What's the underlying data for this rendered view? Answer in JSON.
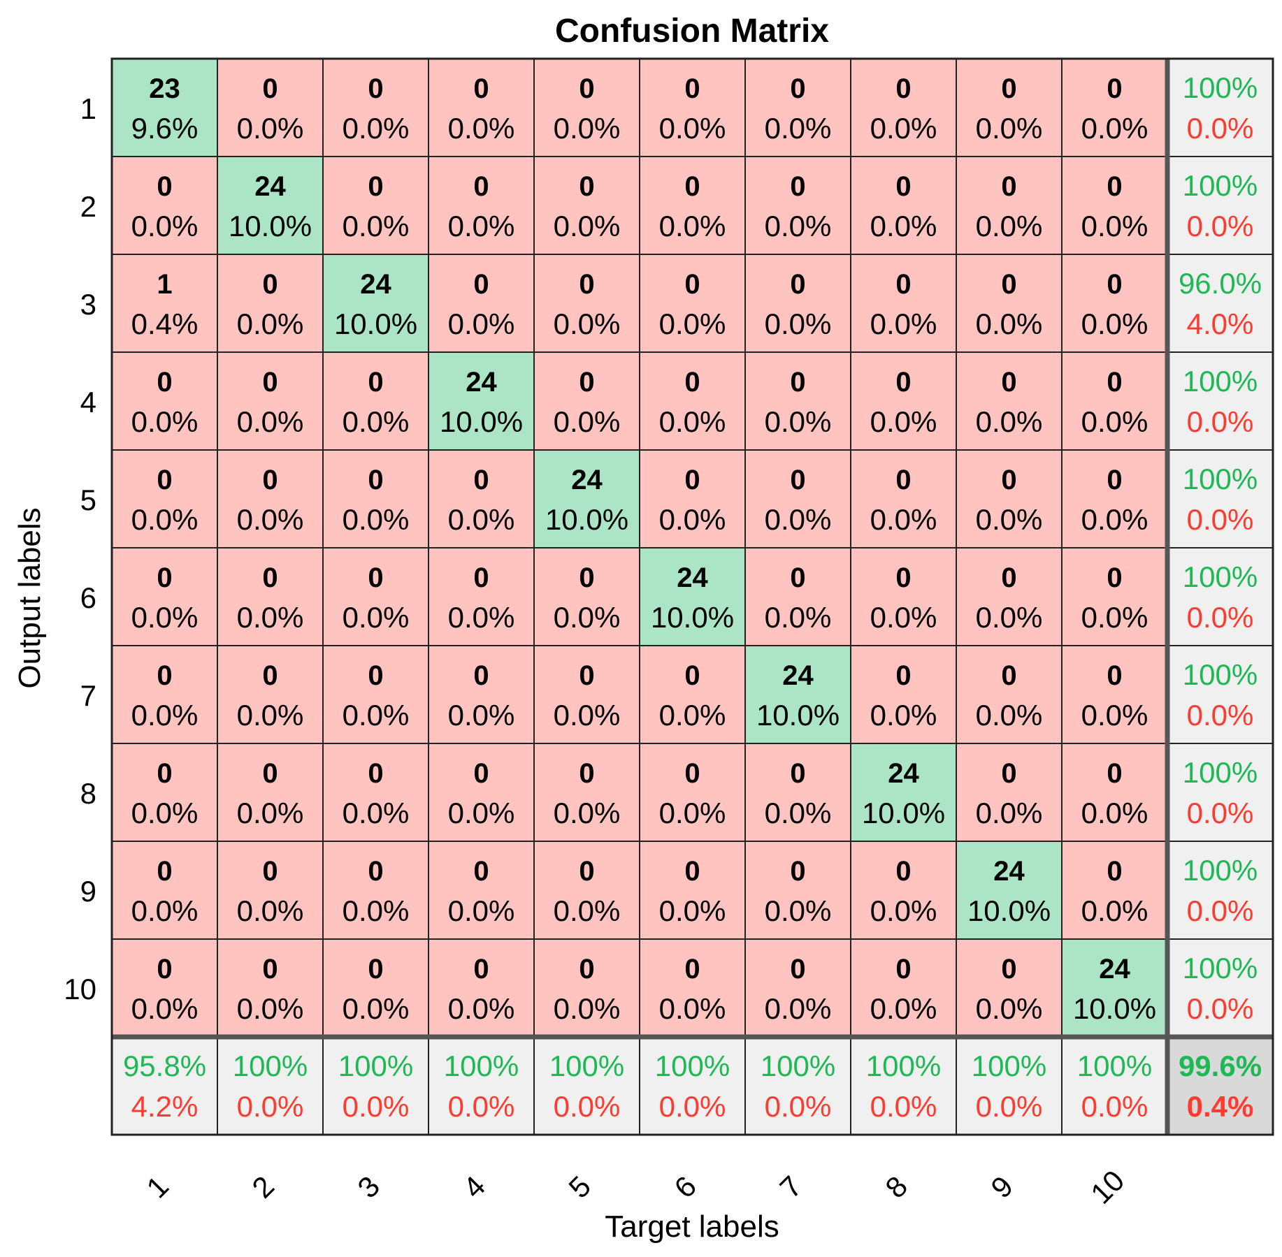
{
  "chart_data": {
    "type": "heatmap",
    "title": "Confusion Matrix",
    "xlabel": "Target labels",
    "ylabel": "Output labels",
    "classes": [
      "1",
      "2",
      "3",
      "4",
      "5",
      "6",
      "7",
      "8",
      "9",
      "10"
    ],
    "counts": [
      [
        23,
        0,
        0,
        0,
        0,
        0,
        0,
        0,
        0,
        0
      ],
      [
        0,
        24,
        0,
        0,
        0,
        0,
        0,
        0,
        0,
        0
      ],
      [
        1,
        0,
        24,
        0,
        0,
        0,
        0,
        0,
        0,
        0
      ],
      [
        0,
        0,
        0,
        24,
        0,
        0,
        0,
        0,
        0,
        0
      ],
      [
        0,
        0,
        0,
        0,
        24,
        0,
        0,
        0,
        0,
        0
      ],
      [
        0,
        0,
        0,
        0,
        0,
        24,
        0,
        0,
        0,
        0
      ],
      [
        0,
        0,
        0,
        0,
        0,
        0,
        24,
        0,
        0,
        0
      ],
      [
        0,
        0,
        0,
        0,
        0,
        0,
        0,
        24,
        0,
        0
      ],
      [
        0,
        0,
        0,
        0,
        0,
        0,
        0,
        0,
        24,
        0
      ],
      [
        0,
        0,
        0,
        0,
        0,
        0,
        0,
        0,
        0,
        24
      ]
    ],
    "percents": [
      [
        "9.6%",
        "0.0%",
        "0.0%",
        "0.0%",
        "0.0%",
        "0.0%",
        "0.0%",
        "0.0%",
        "0.0%",
        "0.0%"
      ],
      [
        "0.0%",
        "10.0%",
        "0.0%",
        "0.0%",
        "0.0%",
        "0.0%",
        "0.0%",
        "0.0%",
        "0.0%",
        "0.0%"
      ],
      [
        "0.4%",
        "0.0%",
        "10.0%",
        "0.0%",
        "0.0%",
        "0.0%",
        "0.0%",
        "0.0%",
        "0.0%",
        "0.0%"
      ],
      [
        "0.0%",
        "0.0%",
        "0.0%",
        "10.0%",
        "0.0%",
        "0.0%",
        "0.0%",
        "0.0%",
        "0.0%",
        "0.0%"
      ],
      [
        "0.0%",
        "0.0%",
        "0.0%",
        "0.0%",
        "10.0%",
        "0.0%",
        "0.0%",
        "0.0%",
        "0.0%",
        "0.0%"
      ],
      [
        "0.0%",
        "0.0%",
        "0.0%",
        "0.0%",
        "0.0%",
        "10.0%",
        "0.0%",
        "0.0%",
        "0.0%",
        "0.0%"
      ],
      [
        "0.0%",
        "0.0%",
        "0.0%",
        "0.0%",
        "0.0%",
        "0.0%",
        "10.0%",
        "0.0%",
        "0.0%",
        "0.0%"
      ],
      [
        "0.0%",
        "0.0%",
        "0.0%",
        "0.0%",
        "0.0%",
        "0.0%",
        "0.0%",
        "10.0%",
        "0.0%",
        "0.0%"
      ],
      [
        "0.0%",
        "0.0%",
        "0.0%",
        "0.0%",
        "0.0%",
        "0.0%",
        "0.0%",
        "0.0%",
        "10.0%",
        "0.0%"
      ],
      [
        "0.0%",
        "0.0%",
        "0.0%",
        "0.0%",
        "0.0%",
        "0.0%",
        "0.0%",
        "0.0%",
        "0.0%",
        "10.0%"
      ]
    ],
    "row_summary": [
      {
        "correct": "100%",
        "error": "0.0%"
      },
      {
        "correct": "100%",
        "error": "0.0%"
      },
      {
        "correct": "96.0%",
        "error": "4.0%"
      },
      {
        "correct": "100%",
        "error": "0.0%"
      },
      {
        "correct": "100%",
        "error": "0.0%"
      },
      {
        "correct": "100%",
        "error": "0.0%"
      },
      {
        "correct": "100%",
        "error": "0.0%"
      },
      {
        "correct": "100%",
        "error": "0.0%"
      },
      {
        "correct": "100%",
        "error": "0.0%"
      },
      {
        "correct": "100%",
        "error": "0.0%"
      }
    ],
    "col_summary": [
      {
        "correct": "95.8%",
        "error": "4.2%"
      },
      {
        "correct": "100%",
        "error": "0.0%"
      },
      {
        "correct": "100%",
        "error": "0.0%"
      },
      {
        "correct": "100%",
        "error": "0.0%"
      },
      {
        "correct": "100%",
        "error": "0.0%"
      },
      {
        "correct": "100%",
        "error": "0.0%"
      },
      {
        "correct": "100%",
        "error": "0.0%"
      },
      {
        "correct": "100%",
        "error": "0.0%"
      },
      {
        "correct": "100%",
        "error": "0.0%"
      },
      {
        "correct": "100%",
        "error": "0.0%"
      }
    ],
    "overall": {
      "correct": "99.6%",
      "error": "0.4%"
    }
  },
  "colors": {
    "correct_cell": "#abe5c5",
    "error_cell": "#ffc4c0",
    "summary_cell": "#f0f0f0",
    "overall_cell": "#d9d9d9",
    "correct_text": "#1db954",
    "error_text": "#ff3b2f",
    "grid_line": "#222222"
  }
}
